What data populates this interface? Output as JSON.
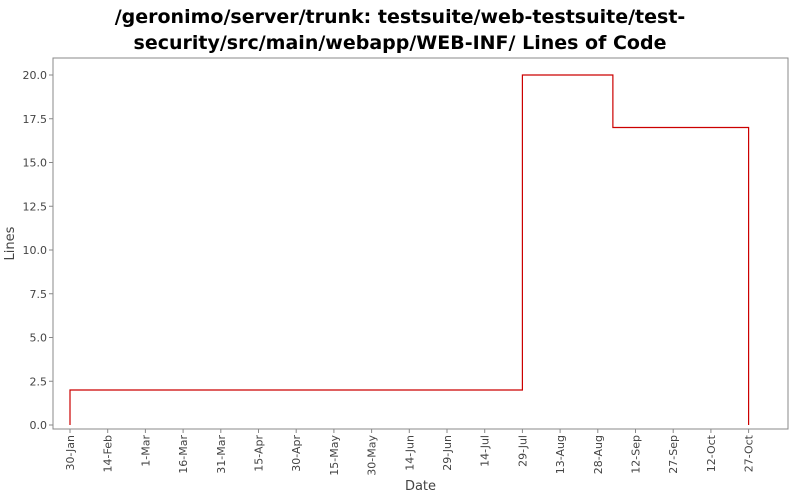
{
  "chart_data": {
    "type": "line",
    "step": true,
    "title_lines": [
      "/geronimo/server/trunk: testsuite/web-testsuite/test-",
      "security/src/main/webapp/WEB-INF/ Lines of Code"
    ],
    "xlabel": "Date",
    "ylabel": "Lines",
    "ylim": [
      0,
      21
    ],
    "y_ticks": [
      "0.0",
      "2.5",
      "5.0",
      "7.5",
      "10.0",
      "12.5",
      "15.0",
      "17.5",
      "20.0"
    ],
    "x_ticks": [
      "30-Jan",
      "14-Feb",
      "1-Mar",
      "16-Mar",
      "31-Mar",
      "15-Apr",
      "30-Apr",
      "15-May",
      "30-May",
      "14-Jun",
      "29-Jun",
      "14-Jul",
      "29-Jul",
      "13-Aug",
      "28-Aug",
      "12-Sep",
      "27-Sep",
      "12-Oct",
      "27-Oct"
    ],
    "series": [
      {
        "color": "#cc0000",
        "points": [
          {
            "x": "30-Jan",
            "y": 2
          },
          {
            "x": "29-Jul",
            "y": 20
          },
          {
            "x": "3-Sep",
            "y": 17
          },
          {
            "x": "27-Oct",
            "y": 0
          }
        ]
      }
    ],
    "grid": false
  }
}
